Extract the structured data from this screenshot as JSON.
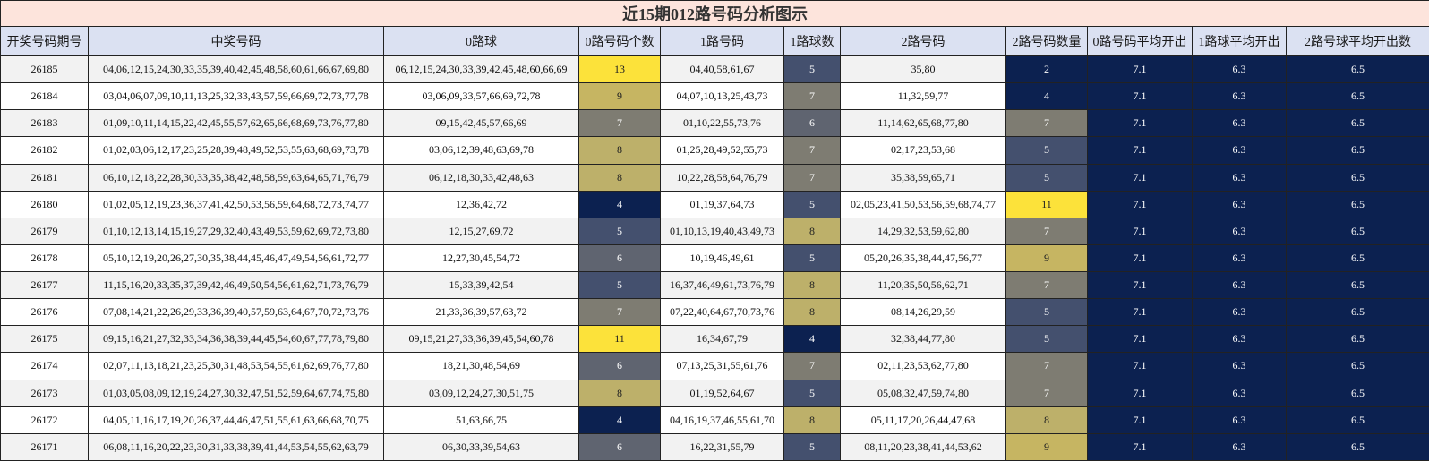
{
  "title": "近15期012路号码分析图示",
  "headers": [
    "开奖号码期号",
    "中奖号码",
    "0路球",
    "0路号码个数",
    "1路号码",
    "1路球数",
    "2路号码",
    "2路号码数量",
    "0路号码平均开出",
    "1路球平均开出",
    "2路号球平均开出数"
  ],
  "colors": {
    "title_bg": "#fde4dc",
    "header_bg": "#dbe1f2",
    "row_alt_bg": "#f2f2f2",
    "avg_bg": "#0c2150",
    "scale": {
      "2": "#0c2150",
      "4": "#0c2150",
      "5": "#44506e",
      "6": "#5f6470",
      "7": "#7e7c72",
      "8": "#bdb06a",
      "9": "#c6b562",
      "11": "#fce23a",
      "13": "#fce23a"
    }
  },
  "rows": [
    {
      "period": "26185",
      "numbers": "04,06,12,15,24,30,33,35,39,40,42,45,48,58,60,61,66,67,69,80",
      "route0": "06,12,15,24,30,33,39,42,45,48,60,66,69",
      "route0_count": "13",
      "route1": "04,40,58,61,67",
      "route1_count": "5",
      "route2": "35,80",
      "route2_count": "2",
      "avg0": "7.1",
      "avg1": "6.3",
      "avg2": "6.5"
    },
    {
      "period": "26184",
      "numbers": "03,04,06,07,09,10,11,13,25,32,33,43,57,59,66,69,72,73,77,78",
      "route0": "03,06,09,33,57,66,69,72,78",
      "route0_count": "9",
      "route1": "04,07,10,13,25,43,73",
      "route1_count": "7",
      "route2": "11,32,59,77",
      "route2_count": "4",
      "avg0": "7.1",
      "avg1": "6.3",
      "avg2": "6.5"
    },
    {
      "period": "26183",
      "numbers": "01,09,10,11,14,15,22,42,45,55,57,62,65,66,68,69,73,76,77,80",
      "route0": "09,15,42,45,57,66,69",
      "route0_count": "7",
      "route1": "01,10,22,55,73,76",
      "route1_count": "6",
      "route2": "11,14,62,65,68,77,80",
      "route2_count": "7",
      "avg0": "7.1",
      "avg1": "6.3",
      "avg2": "6.5"
    },
    {
      "period": "26182",
      "numbers": "01,02,03,06,12,17,23,25,28,39,48,49,52,53,55,63,68,69,73,78",
      "route0": "03,06,12,39,48,63,69,78",
      "route0_count": "8",
      "route1": "01,25,28,49,52,55,73",
      "route1_count": "7",
      "route2": "02,17,23,53,68",
      "route2_count": "5",
      "avg0": "7.1",
      "avg1": "6.3",
      "avg2": "6.5"
    },
    {
      "period": "26181",
      "numbers": "06,10,12,18,22,28,30,33,35,38,42,48,58,59,63,64,65,71,76,79",
      "route0": "06,12,18,30,33,42,48,63",
      "route0_count": "8",
      "route1": "10,22,28,58,64,76,79",
      "route1_count": "7",
      "route2": "35,38,59,65,71",
      "route2_count": "5",
      "avg0": "7.1",
      "avg1": "6.3",
      "avg2": "6.5"
    },
    {
      "period": "26180",
      "numbers": "01,02,05,12,19,23,36,37,41,42,50,53,56,59,64,68,72,73,74,77",
      "route0": "12,36,42,72",
      "route0_count": "4",
      "route1": "01,19,37,64,73",
      "route1_count": "5",
      "route2": "02,05,23,41,50,53,56,59,68,74,77",
      "route2_count": "11",
      "avg0": "7.1",
      "avg1": "6.3",
      "avg2": "6.5"
    },
    {
      "period": "26179",
      "numbers": "01,10,12,13,14,15,19,27,29,32,40,43,49,53,59,62,69,72,73,80",
      "route0": "12,15,27,69,72",
      "route0_count": "5",
      "route1": "01,10,13,19,40,43,49,73",
      "route1_count": "8",
      "route2": "14,29,32,53,59,62,80",
      "route2_count": "7",
      "avg0": "7.1",
      "avg1": "6.3",
      "avg2": "6.5"
    },
    {
      "period": "26178",
      "numbers": "05,10,12,19,20,26,27,30,35,38,44,45,46,47,49,54,56,61,72,77",
      "route0": "12,27,30,45,54,72",
      "route0_count": "6",
      "route1": "10,19,46,49,61",
      "route1_count": "5",
      "route2": "05,20,26,35,38,44,47,56,77",
      "route2_count": "9",
      "avg0": "7.1",
      "avg1": "6.3",
      "avg2": "6.5"
    },
    {
      "period": "26177",
      "numbers": "11,15,16,20,33,35,37,39,42,46,49,50,54,56,61,62,71,73,76,79",
      "route0": "15,33,39,42,54",
      "route0_count": "5",
      "route1": "16,37,46,49,61,73,76,79",
      "route1_count": "8",
      "route2": "11,20,35,50,56,62,71",
      "route2_count": "7",
      "avg0": "7.1",
      "avg1": "6.3",
      "avg2": "6.5"
    },
    {
      "period": "26176",
      "numbers": "07,08,14,21,22,26,29,33,36,39,40,57,59,63,64,67,70,72,73,76",
      "route0": "21,33,36,39,57,63,72",
      "route0_count": "7",
      "route1": "07,22,40,64,67,70,73,76",
      "route1_count": "8",
      "route2": "08,14,26,29,59",
      "route2_count": "5",
      "avg0": "7.1",
      "avg1": "6.3",
      "avg2": "6.5"
    },
    {
      "period": "26175",
      "numbers": "09,15,16,21,27,32,33,34,36,38,39,44,45,54,60,67,77,78,79,80",
      "route0": "09,15,21,27,33,36,39,45,54,60,78",
      "route0_count": "11",
      "route1": "16,34,67,79",
      "route1_count": "4",
      "route2": "32,38,44,77,80",
      "route2_count": "5",
      "avg0": "7.1",
      "avg1": "6.3",
      "avg2": "6.5"
    },
    {
      "period": "26174",
      "numbers": "02,07,11,13,18,21,23,25,30,31,48,53,54,55,61,62,69,76,77,80",
      "route0": "18,21,30,48,54,69",
      "route0_count": "6",
      "route1": "07,13,25,31,55,61,76",
      "route1_count": "7",
      "route2": "02,11,23,53,62,77,80",
      "route2_count": "7",
      "avg0": "7.1",
      "avg1": "6.3",
      "avg2": "6.5"
    },
    {
      "period": "26173",
      "numbers": "01,03,05,08,09,12,19,24,27,30,32,47,51,52,59,64,67,74,75,80",
      "route0": "03,09,12,24,27,30,51,75",
      "route0_count": "8",
      "route1": "01,19,52,64,67",
      "route1_count": "5",
      "route2": "05,08,32,47,59,74,80",
      "route2_count": "7",
      "avg0": "7.1",
      "avg1": "6.3",
      "avg2": "6.5"
    },
    {
      "period": "26172",
      "numbers": "04,05,11,16,17,19,20,26,37,44,46,47,51,55,61,63,66,68,70,75",
      "route0": "51,63,66,75",
      "route0_count": "4",
      "route1": "04,16,19,37,46,55,61,70",
      "route1_count": "8",
      "route2": "05,11,17,20,26,44,47,68",
      "route2_count": "8",
      "avg0": "7.1",
      "avg1": "6.3",
      "avg2": "6.5"
    },
    {
      "period": "26171",
      "numbers": "06,08,11,16,20,22,23,30,31,33,38,39,41,44,53,54,55,62,63,79",
      "route0": "06,30,33,39,54,63",
      "route0_count": "6",
      "route1": "16,22,31,55,79",
      "route1_count": "5",
      "route2": "08,11,20,23,38,41,44,53,62",
      "route2_count": "9",
      "avg0": "7.1",
      "avg1": "6.3",
      "avg2": "6.5"
    }
  ]
}
